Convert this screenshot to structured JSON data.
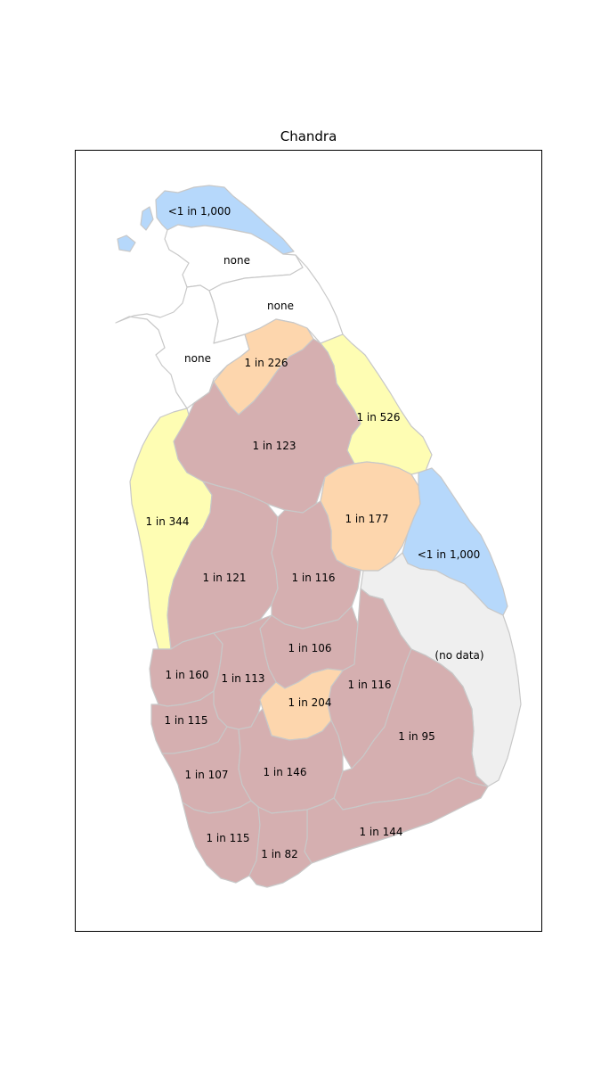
{
  "title": "Chandra",
  "colors": {
    "very_low": "#b6d8fb",
    "none": "#ffffff",
    "low": "#fefdb3",
    "medium": "#fdd6ad",
    "high": "#d5afb0",
    "no_data": "#efefef",
    "border": "#c8c8c8"
  },
  "districts": [
    {
      "label": "<1 in 1,000",
      "category": "very_low"
    },
    {
      "label": "none",
      "category": "none"
    },
    {
      "label": "none",
      "category": "none"
    },
    {
      "label": "none",
      "category": "none"
    },
    {
      "label": "1 in 226",
      "category": "medium"
    },
    {
      "label": "1 in 526",
      "category": "low"
    },
    {
      "label": "1 in 123",
      "category": "high"
    },
    {
      "label": "1 in 344",
      "category": "low"
    },
    {
      "label": "1 in 177",
      "category": "medium"
    },
    {
      "label": "<1 in 1,000",
      "category": "very_low"
    },
    {
      "label": "1 in 121",
      "category": "high"
    },
    {
      "label": "1 in 116",
      "category": "high"
    },
    {
      "label": "(no data)",
      "category": "no_data"
    },
    {
      "label": "1 in 106",
      "category": "high"
    },
    {
      "label": "1 in 160",
      "category": "high"
    },
    {
      "label": "1 in 113",
      "category": "high"
    },
    {
      "label": "1 in 116",
      "category": "high"
    },
    {
      "label": "1 in 204",
      "category": "medium"
    },
    {
      "label": "1 in 115",
      "category": "high"
    },
    {
      "label": "1 in 95",
      "category": "high"
    },
    {
      "label": "1 in 107",
      "category": "high"
    },
    {
      "label": "1 in 146",
      "category": "high"
    },
    {
      "label": "1 in 115",
      "category": "high"
    },
    {
      "label": "1 in 144",
      "category": "high"
    },
    {
      "label": "1 in 82",
      "category": "high"
    }
  ]
}
